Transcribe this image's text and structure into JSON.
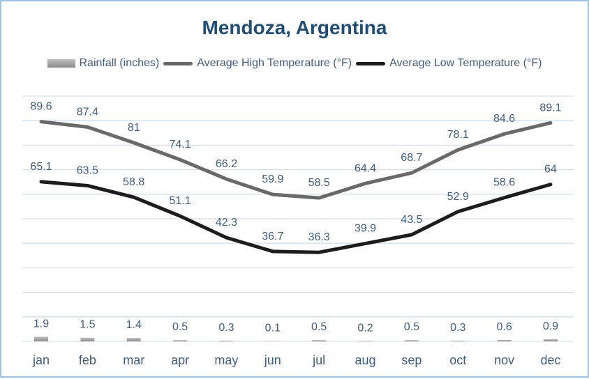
{
  "title": "Mendoza, Argentina",
  "colors": {
    "title": "#1F4E79",
    "label_text": "#3E5C84",
    "gridline": "#D3DFEF",
    "high_line": "#696969",
    "low_line": "#1C1C1C",
    "bar_top": "#BFBFBF",
    "bar_bottom": "#8C8C8C",
    "border": "#9DC3E6",
    "background": "#FFFFFF"
  },
  "chart_data": {
    "type": "combo",
    "title": "Mendoza, Argentina",
    "categories": [
      "jan",
      "feb",
      "mar",
      "apr",
      "may",
      "jun",
      "jul",
      "aug",
      "sep",
      "oct",
      "nov",
      "dec"
    ],
    "series": [
      {
        "name": "Rainfall (inches)",
        "type": "bar",
        "color": "#9E9E9E",
        "values": [
          1.9,
          1.5,
          1.4,
          0.5,
          0.3,
          0.1,
          0.5,
          0.2,
          0.5,
          0.3,
          0.6,
          0.9
        ]
      },
      {
        "name": "Average High Temperature (°F)",
        "type": "line",
        "color": "#696969",
        "values": [
          89.6,
          87.4,
          81,
          74.1,
          66.2,
          59.9,
          58.5,
          64.4,
          68.7,
          78.1,
          84.6,
          89.1
        ]
      },
      {
        "name": "Average Low Temperature (°F)",
        "type": "line",
        "color": "#1C1C1C",
        "values": [
          65.1,
          63.5,
          58.8,
          51.1,
          42.3,
          36.7,
          36.3,
          39.9,
          43.5,
          52.9,
          58.6,
          64
        ]
      }
    ],
    "xlabel": "",
    "ylabel": "",
    "ylim": [
      0,
      100
    ],
    "grid_step": 10,
    "gridlines": true,
    "y_axis_labels_visible": false,
    "legend_position": "top",
    "data_labels": true
  }
}
